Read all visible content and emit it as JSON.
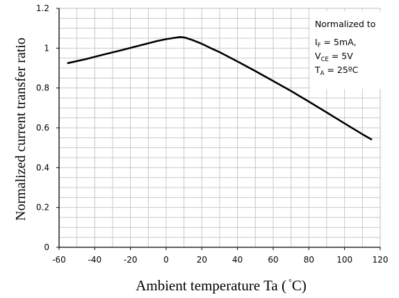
{
  "chart_data": {
    "type": "line",
    "xlabel_main": "Ambient temperature Ta (",
    "xlabel_unit": "°",
    "xlabel_close": "C)",
    "ylabel": "Normalized current transfer ratio",
    "xlim": [
      -60,
      120
    ],
    "ylim": [
      0,
      1.2
    ],
    "x_ticks": [
      "-60",
      "-40",
      "-20",
      "0",
      "20",
      "40",
      "60",
      "80",
      "100",
      "120"
    ],
    "y_ticks": [
      "0",
      "0.2",
      "0.4",
      "0.6",
      "0.8",
      "1",
      "1.2"
    ],
    "x_tick_values": [
      -60,
      -40,
      -20,
      0,
      20,
      40,
      60,
      80,
      100,
      120
    ],
    "y_tick_values": [
      0,
      0.2,
      0.4,
      0.6,
      0.8,
      1.0,
      1.2
    ],
    "grid": true,
    "series": [
      {
        "x": [
          -55,
          -45,
          -35,
          -25,
          -15,
          -5,
          0,
          5,
          8,
          10,
          12,
          15,
          20,
          25,
          30,
          40,
          50,
          60,
          70,
          80,
          90,
          100,
          110,
          115
        ],
        "y": [
          0.925,
          0.945,
          0.968,
          0.99,
          1.013,
          1.036,
          1.045,
          1.052,
          1.056,
          1.054,
          1.049,
          1.04,
          1.022,
          1.0,
          0.98,
          0.933,
          0.885,
          0.835,
          0.785,
          0.732,
          0.677,
          0.622,
          0.568,
          0.542
        ],
        "color": "#000000"
      }
    ],
    "annotation": {
      "line1": "Normalized to",
      "line2_main": "I",
      "line2_sub": "F",
      "line2_rest": " = 5mA,",
      "line3_main": "V",
      "line3_sub": "CE",
      "line3_rest": " = 5V",
      "line4_main": "T",
      "line4_sub": "A",
      "line4_rest": " = 25ºC"
    }
  }
}
